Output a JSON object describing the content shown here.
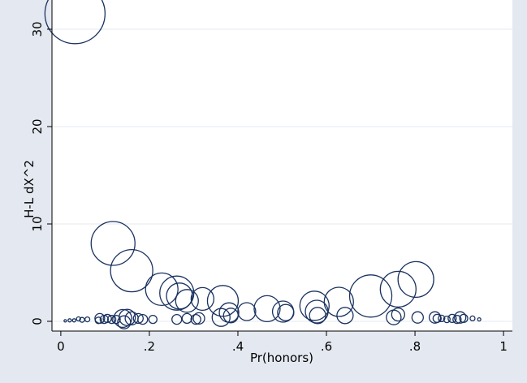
{
  "chart_data": {
    "type": "scatter",
    "title": "",
    "xlabel": "Pr(honors)",
    "ylabel": "H-L dX^2",
    "xlim": [
      -0.02,
      1.02
    ],
    "ylim": [
      -1.0,
      33.0
    ],
    "x_ticks": [
      {
        "value": 0,
        "label": "0"
      },
      {
        "value": 0.2,
        "label": ".2"
      },
      {
        "value": 0.4,
        "label": ".4"
      },
      {
        "value": 0.6,
        "label": ".6"
      },
      {
        "value": 0.8,
        "label": ".8"
      },
      {
        "value": 1,
        "label": "1"
      }
    ],
    "y_ticks": [
      {
        "value": 0,
        "label": "0"
      },
      {
        "value": 10,
        "label": "10"
      },
      {
        "value": 20,
        "label": "20"
      },
      {
        "value": 30,
        "label": "30"
      }
    ],
    "grid": "horizontal",
    "marker": "hollow circles weighted by influence",
    "marker_color": "#1a3260",
    "background_outer": "#e4e9f1",
    "background_plot": "#ffffff",
    "points": [
      {
        "x": 0.032,
        "y": 31.6,
        "r": 37
      },
      {
        "x": 0.118,
        "y": 8.0,
        "r": 27
      },
      {
        "x": 0.16,
        "y": 5.2,
        "r": 26
      },
      {
        "x": 0.228,
        "y": 3.3,
        "r": 20
      },
      {
        "x": 0.262,
        "y": 2.9,
        "r": 21
      },
      {
        "x": 0.268,
        "y": 2.6,
        "r": 16
      },
      {
        "x": 0.285,
        "y": 2.1,
        "r": 14
      },
      {
        "x": 0.32,
        "y": 2.3,
        "r": 14
      },
      {
        "x": 0.366,
        "y": 2.1,
        "r": 19
      },
      {
        "x": 0.362,
        "y": 0.4,
        "r": 11
      },
      {
        "x": 0.38,
        "y": 0.9,
        "r": 12
      },
      {
        "x": 0.384,
        "y": 0.6,
        "r": 9
      },
      {
        "x": 0.42,
        "y": 1.0,
        "r": 11
      },
      {
        "x": 0.466,
        "y": 1.3,
        "r": 16
      },
      {
        "x": 0.502,
        "y": 1.0,
        "r": 13
      },
      {
        "x": 0.508,
        "y": 0.9,
        "r": 10
      },
      {
        "x": 0.573,
        "y": 1.6,
        "r": 18
      },
      {
        "x": 0.578,
        "y": 1.0,
        "r": 14
      },
      {
        "x": 0.58,
        "y": 0.6,
        "r": 10
      },
      {
        "x": 0.628,
        "y": 2.0,
        "r": 18
      },
      {
        "x": 0.642,
        "y": 0.6,
        "r": 10
      },
      {
        "x": 0.7,
        "y": 2.6,
        "r": 26
      },
      {
        "x": 0.762,
        "y": 3.3,
        "r": 22
      },
      {
        "x": 0.802,
        "y": 4.3,
        "r": 22
      },
      {
        "x": 0.752,
        "y": 0.4,
        "r": 9
      },
      {
        "x": 0.762,
        "y": 0.7,
        "r": 8
      },
      {
        "x": 0.806,
        "y": 0.4,
        "r": 7
      },
      {
        "x": 0.15,
        "y": 0.4,
        "r": 10
      },
      {
        "x": 0.14,
        "y": 0.3,
        "r": 11
      },
      {
        "x": 0.143,
        "y": -0.1,
        "r": 8
      },
      {
        "x": 0.16,
        "y": 0.3,
        "r": 8
      },
      {
        "x": 0.175,
        "y": 0.3,
        "r": 6
      },
      {
        "x": 0.185,
        "y": 0.2,
        "r": 6
      },
      {
        "x": 0.208,
        "y": 0.2,
        "r": 5
      },
      {
        "x": 0.262,
        "y": 0.2,
        "r": 6
      },
      {
        "x": 0.285,
        "y": 0.3,
        "r": 6
      },
      {
        "x": 0.305,
        "y": 0.2,
        "r": 6
      },
      {
        "x": 0.312,
        "y": 0.3,
        "r": 7
      },
      {
        "x": 0.088,
        "y": 0.3,
        "r": 6
      },
      {
        "x": 0.098,
        "y": 0.2,
        "r": 5
      },
      {
        "x": 0.105,
        "y": 0.3,
        "r": 5
      },
      {
        "x": 0.115,
        "y": 0.2,
        "r": 5
      },
      {
        "x": 0.125,
        "y": 0.2,
        "r": 5
      },
      {
        "x": 0.085,
        "y": 0.1,
        "r": 4
      },
      {
        "x": 0.06,
        "y": 0.2,
        "r": 3
      },
      {
        "x": 0.048,
        "y": 0.15,
        "r": 3
      },
      {
        "x": 0.04,
        "y": 0.25,
        "r": 2.5
      },
      {
        "x": 0.03,
        "y": 0.1,
        "r": 2
      },
      {
        "x": 0.02,
        "y": 0.1,
        "r": 2
      },
      {
        "x": 0.01,
        "y": 0.05,
        "r": 1.5
      },
      {
        "x": 0.845,
        "y": 0.4,
        "r": 7
      },
      {
        "x": 0.85,
        "y": 0.3,
        "r": 5
      },
      {
        "x": 0.86,
        "y": 0.3,
        "r": 4
      },
      {
        "x": 0.872,
        "y": 0.2,
        "r": 4
      },
      {
        "x": 0.884,
        "y": 0.3,
        "r": 5
      },
      {
        "x": 0.895,
        "y": 0.2,
        "r": 5
      },
      {
        "x": 0.902,
        "y": 0.4,
        "r": 7
      },
      {
        "x": 0.91,
        "y": 0.3,
        "r": 5
      },
      {
        "x": 0.93,
        "y": 0.3,
        "r": 3
      },
      {
        "x": 0.945,
        "y": 0.2,
        "r": 2
      }
    ]
  }
}
